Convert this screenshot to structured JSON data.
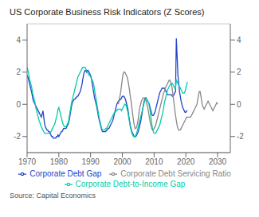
{
  "chart_data": {
    "type": "line",
    "title": "US Corporate Business Risk Indicators (Z Scores)",
    "annotations": [
      "Source: Capital Economics"
    ],
    "grid": true,
    "legend": "bottom",
    "xlim": [
      1970,
      2034
    ],
    "xticks": [
      1970,
      1980,
      1990,
      2000,
      2010,
      2020,
      2030
    ],
    "ylim": [
      -3,
      5
    ],
    "yticks": [
      -2,
      0,
      2,
      4
    ],
    "y2lim": [
      -3,
      5
    ],
    "y2ticks": [
      -2,
      0,
      2,
      4
    ],
    "x": [
      1970,
      1970.25,
      1970.5,
      1970.75,
      1971,
      1971.25,
      1971.5,
      1971.75,
      1972,
      1972.25,
      1972.5,
      1972.75,
      1973,
      1973.25,
      1973.5,
      1973.75,
      1974,
      1974.25,
      1974.5,
      1974.75,
      1975,
      1975.25,
      1975.5,
      1975.75,
      1976,
      1976.25,
      1976.5,
      1976.75,
      1977,
      1977.25,
      1977.5,
      1977.75,
      1978,
      1978.25,
      1978.5,
      1978.75,
      1979,
      1979.25,
      1979.5,
      1979.75,
      1980,
      1980.25,
      1980.5,
      1980.75,
      1981,
      1981.25,
      1981.5,
      1981.75,
      1982,
      1982.25,
      1982.5,
      1982.75,
      1983,
      1983.25,
      1983.5,
      1983.75,
      1984,
      1984.25,
      1984.5,
      1984.75,
      1985,
      1985.25,
      1985.5,
      1985.75,
      1986,
      1986.25,
      1986.5,
      1986.75,
      1987,
      1987.25,
      1987.5,
      1987.75,
      1988,
      1988.25,
      1988.5,
      1988.75,
      1989,
      1989.25,
      1989.5,
      1989.75,
      1990,
      1990.25,
      1990.5,
      1990.75,
      1991,
      1991.25,
      1991.5,
      1991.75,
      1992,
      1992.25,
      1992.5,
      1992.75,
      1993,
      1993.25,
      1993.5,
      1993.75,
      1994,
      1994.25,
      1994.5,
      1994.75,
      1995,
      1995.25,
      1995.5,
      1995.75,
      1996,
      1996.25,
      1996.5,
      1996.75,
      1997,
      1997.25,
      1997.5,
      1997.75,
      1998,
      1998.25,
      1998.5,
      1998.75,
      1999,
      1999.25,
      1999.5,
      1999.75,
      2000,
      2000.25,
      2000.5,
      2000.75,
      2001,
      2001.25,
      2001.5,
      2001.75,
      2002,
      2002.25,
      2002.5,
      2002.75,
      2003,
      2003.25,
      2003.5,
      2003.75,
      2004,
      2004.25,
      2004.5,
      2004.75,
      2005,
      2005.25,
      2005.5,
      2005.75,
      2006,
      2006.25,
      2006.5,
      2006.75,
      2007,
      2007.25,
      2007.5,
      2007.75,
      2008,
      2008.25,
      2008.5,
      2008.75,
      2009,
      2009.25,
      2009.5,
      2009.75,
      2010,
      2010.25,
      2010.5,
      2010.75,
      2011,
      2011.25,
      2011.5,
      2011.75,
      2012,
      2012.25,
      2012.5,
      2012.75,
      2013,
      2013.25,
      2013.5,
      2013.75,
      2014,
      2014.25,
      2014.5,
      2014.75,
      2015,
      2015.25,
      2015.5,
      2015.75,
      2016,
      2016.25,
      2016.5,
      2016.75,
      2017,
      2017.25,
      2017.5,
      2017.75,
      2018,
      2018.25,
      2018.5,
      2018.75,
      2019,
      2019.25,
      2019.5,
      2019.75,
      2020,
      2020.25,
      2020.5,
      2020.75,
      2021,
      2021.25,
      2021.5,
      2021.75,
      2022,
      2022.25,
      2022.5,
      2022.75,
      2023,
      2023.25,
      2023.5,
      2023.75,
      2024,
      2024.25,
      2024.5,
      2024.75,
      2025,
      2025.25,
      2025.5,
      2025.75,
      2026,
      2026.25,
      2026.5,
      2026.75,
      2027,
      2027.25,
      2027.5,
      2027.75,
      2028,
      2028.25,
      2028.5,
      2028.75,
      2029,
      2029.25,
      2029.5,
      2029.75,
      2030
    ],
    "series": [
      {
        "name": "Corporate Debt Gap",
        "color": "#2244cc",
        "values": [
          1.8,
          1.7,
          1.5,
          1.3,
          1.1,
          0.9,
          0.7,
          0.4,
          0.2,
          0.1,
          0.0,
          -0.1,
          -0.2,
          -0.3,
          -0.4,
          -0.5,
          -0.6,
          -0.7,
          -0.8,
          -0.6,
          -0.4,
          -0.8,
          -1.2,
          -1.4,
          -1.5,
          -1.6,
          -1.6,
          -1.7,
          -1.7,
          -1.8,
          -1.9,
          -2.0,
          -2.0,
          -2.1,
          -2.1,
          -2.1,
          -2.1,
          -2.0,
          -2.0,
          -1.9,
          -2.0,
          -1.9,
          -1.8,
          -1.7,
          -1.7,
          -1.6,
          -1.5,
          -1.5,
          -1.5,
          -1.5,
          -1.4,
          -1.3,
          -1.2,
          -1.0,
          -0.7,
          -0.4,
          -0.1,
          0.1,
          0.2,
          0.3,
          0.3,
          0.4,
          0.4,
          0.5,
          0.5,
          0.6,
          0.7,
          0.8,
          1.0,
          1.2,
          1.5,
          1.8,
          2.0,
          2.1,
          2.1,
          2.0,
          2.1,
          2.1,
          2.0,
          1.9,
          1.8,
          1.6,
          1.3,
          1.0,
          0.7,
          0.4,
          0.2,
          0.0,
          -0.2,
          -0.5,
          -0.8,
          -1.0,
          -1.2,
          -1.4,
          -1.6,
          -1.7,
          -1.7,
          -1.7,
          -1.7,
          -1.7,
          -1.6,
          -1.6,
          -1.5,
          -1.5,
          -1.4,
          -1.3,
          -1.2,
          -1.1,
          -1.0,
          -0.8,
          -0.6,
          -0.4,
          -0.2,
          0.0,
          0.1,
          0.2,
          0.2,
          0.3,
          0.3,
          0.4,
          0.5,
          0.5,
          0.5,
          0.4,
          0.3,
          0.1,
          -0.1,
          -0.3,
          -0.7,
          -1.0,
          -1.3,
          -1.5,
          -1.7,
          -1.8,
          -1.9,
          -2.0,
          -2.0,
          -2.0,
          -1.9,
          -1.8,
          -1.7,
          -1.5,
          -1.3,
          -1.1,
          -0.8,
          -0.5,
          -0.2,
          0.1,
          0.3,
          0.4,
          0.4,
          0.3,
          0.2,
          0.1,
          0.0,
          -0.2,
          -0.4,
          -0.6,
          -0.7,
          -0.7,
          -0.6,
          -0.5,
          -0.3,
          -0.1,
          0.1,
          0.3,
          0.5,
          0.7,
          0.8,
          0.9,
          1.0,
          1.0,
          1.0,
          1.0,
          0.9,
          0.8,
          0.7,
          0.6,
          0.6,
          0.6,
          0.6,
          0.6,
          0.6,
          0.5,
          0.5,
          0.6,
          0.7,
          0.8,
          4.1,
          3.0,
          1.8,
          1.3,
          0.8,
          0.5,
          0.2,
          0.0,
          -0.2,
          -0.3,
          -0.4,
          -0.5,
          -0.5,
          -0.4,
          -0.4,
          null,
          null,
          null,
          null,
          null,
          null,
          null,
          null,
          null,
          null,
          null,
          null,
          null,
          null,
          null,
          null,
          null,
          null,
          null,
          null,
          null,
          null,
          null,
          null,
          null,
          null,
          null,
          null,
          null,
          null,
          null,
          null,
          null,
          null,
          null,
          null,
          null,
          null
        ]
      },
      {
        "name": "Corporate Debt-to-Income Gap",
        "color": "#00ccaa",
        "values": [
          2.3,
          2.1,
          1.9,
          1.6,
          1.4,
          1.2,
          1.0,
          0.7,
          0.5,
          0.3,
          0.1,
          -0.2,
          -0.4,
          -0.6,
          -0.8,
          -1.0,
          -1.1,
          -1.3,
          -1.4,
          -1.5,
          -1.6,
          -1.7,
          -1.8,
          -1.8,
          -1.8,
          -1.8,
          -1.8,
          -1.8,
          -1.8,
          -1.8,
          -1.7,
          -1.6,
          -1.5,
          -1.4,
          -1.3,
          -1.2,
          -1.0,
          -0.8,
          -0.6,
          -0.3,
          -0.2,
          -0.4,
          -0.6,
          -0.8,
          -1.0,
          -1.2,
          -1.3,
          -1.4,
          -1.4,
          -1.4,
          -1.3,
          -1.2,
          -1.1,
          -0.8,
          -0.5,
          -0.2,
          0.1,
          0.3,
          0.5,
          0.7,
          0.9,
          1.1,
          1.3,
          1.5,
          1.7,
          1.8,
          1.9,
          2.0,
          2.1,
          2.2,
          2.3,
          2.3,
          2.3,
          2.3,
          2.2,
          2.1,
          2.0,
          1.9,
          1.8,
          1.8,
          1.7,
          1.6,
          1.5,
          1.4,
          1.2,
          0.9,
          0.6,
          0.3,
          0.0,
          -0.3,
          -0.6,
          -0.9,
          -1.1,
          -1.3,
          -1.5,
          -1.6,
          -1.6,
          -1.6,
          -1.6,
          -1.5,
          -1.5,
          -1.4,
          -1.3,
          -1.2,
          -1.1,
          -1.0,
          -0.9,
          -0.8,
          -0.7,
          -0.6,
          -0.5,
          -0.5,
          -0.4,
          -0.4,
          -0.3,
          -0.3,
          -0.3,
          -0.3,
          -0.3,
          -0.4,
          -0.3,
          -0.2,
          -0.1,
          0.0,
          0.0,
          -0.1,
          -0.3,
          -0.5,
          -0.8,
          -1.1,
          -1.4,
          -1.6,
          -1.8,
          -1.9,
          -2.0,
          -2.0,
          -2.0,
          -1.9,
          -1.8,
          -1.6,
          -1.4,
          -1.2,
          -1.0,
          -0.8,
          -0.6,
          -0.4,
          -0.2,
          0.0,
          0.2,
          0.3,
          0.4,
          0.3,
          0.2,
          0.1,
          -0.1,
          -0.4,
          -0.8,
          -1.2,
          -1.5,
          -1.7,
          -1.8,
          -1.8,
          -1.8,
          -1.7,
          -1.6,
          -1.5,
          -1.4,
          -1.3,
          -1.1,
          -0.9,
          -0.7,
          -0.5,
          -0.2,
          0.1,
          0.3,
          0.5,
          0.7,
          0.9,
          1.0,
          1.1,
          1.2,
          1.3,
          1.3,
          1.3,
          1.2,
          1.1,
          1.0,
          1.0,
          1.5,
          1.4,
          1.3,
          1.2,
          1.1,
          1.0,
          0.9,
          0.8,
          0.7,
          0.7,
          0.7,
          0.8,
          1.0,
          1.2,
          1.4,
          null,
          null,
          null,
          null,
          null,
          null,
          null,
          null,
          null,
          null,
          null,
          null,
          null,
          null,
          null,
          null,
          null,
          null,
          null,
          null,
          null,
          null,
          null,
          null,
          null,
          null,
          null,
          null,
          null,
          null,
          null,
          null,
          null,
          null,
          null,
          null,
          null,
          null
        ]
      },
      {
        "name": "Corporate Debt Servicing Ratio",
        "color": "#888888",
        "values": [
          null,
          null,
          null,
          null,
          null,
          null,
          null,
          null,
          null,
          null,
          null,
          null,
          null,
          null,
          null,
          null,
          null,
          null,
          null,
          null,
          null,
          null,
          null,
          null,
          null,
          null,
          null,
          null,
          null,
          null,
          null,
          null,
          null,
          null,
          null,
          null,
          null,
          null,
          null,
          null,
          null,
          null,
          null,
          null,
          null,
          null,
          null,
          null,
          null,
          null,
          null,
          null,
          null,
          null,
          null,
          null,
          null,
          null,
          null,
          null,
          null,
          null,
          null,
          null,
          null,
          null,
          null,
          null,
          null,
          null,
          null,
          null,
          null,
          null,
          null,
          null,
          null,
          null,
          null,
          null,
          null,
          null,
          null,
          null,
          null,
          null,
          null,
          null,
          null,
          null,
          null,
          null,
          null,
          null,
          null,
          null,
          null,
          null,
          null,
          null,
          null,
          null,
          null,
          null,
          null,
          null,
          null,
          null,
          null,
          null,
          null,
          null,
          null,
          null,
          null,
          0.0,
          0.3,
          0.5,
          0.8,
          1.2,
          1.6,
          1.9,
          2.0,
          2.0,
          1.9,
          1.8,
          1.7,
          1.5,
          1.2,
          0.9,
          0.5,
          0.2,
          -0.2,
          -0.6,
          -1.0,
          -1.3,
          -1.5,
          -1.5,
          -1.4,
          -1.2,
          -0.9,
          -0.5,
          -0.2,
          0.0,
          0.2,
          0.3,
          0.4,
          0.4,
          0.4,
          0.3,
          0.2,
          0.0,
          -0.2,
          -0.5,
          -0.8,
          -1.1,
          -1.3,
          -1.5,
          -1.6,
          -1.6,
          -1.5,
          -1.4,
          -1.3,
          -1.1,
          -0.9,
          -0.7,
          -0.5,
          -0.3,
          -0.1,
          0.1,
          0.3,
          0.5,
          0.7,
          0.8,
          1.0,
          1.1,
          1.2,
          1.3,
          1.4,
          1.5,
          1.5,
          1.4,
          1.2,
          0.9,
          0.5,
          0.1,
          -0.3,
          -0.7,
          -1.0,
          -1.3,
          -1.5,
          -1.6,
          -1.6,
          -1.6,
          -1.5,
          -1.4,
          -1.3,
          -1.2,
          -1.1,
          -1.0,
          -0.9,
          -0.8,
          -0.8,
          -0.8,
          -0.8,
          -0.8,
          -0.8,
          -0.7,
          -0.6,
          -0.5,
          -0.4,
          -0.3,
          -0.2,
          -0.1,
          0.0,
          0.3,
          0.6,
          0.8,
          0.8,
          0.5,
          0.2,
          -0.1,
          -0.2,
          -0.3,
          -0.2,
          -0.1,
          0.0,
          0.1,
          0.2,
          0.1,
          0.0,
          -0.1,
          -0.2,
          -0.3,
          -0.4,
          -0.3,
          -0.2,
          -0.1,
          0.0,
          0.1,
          0.0
        ]
      }
    ]
  }
}
